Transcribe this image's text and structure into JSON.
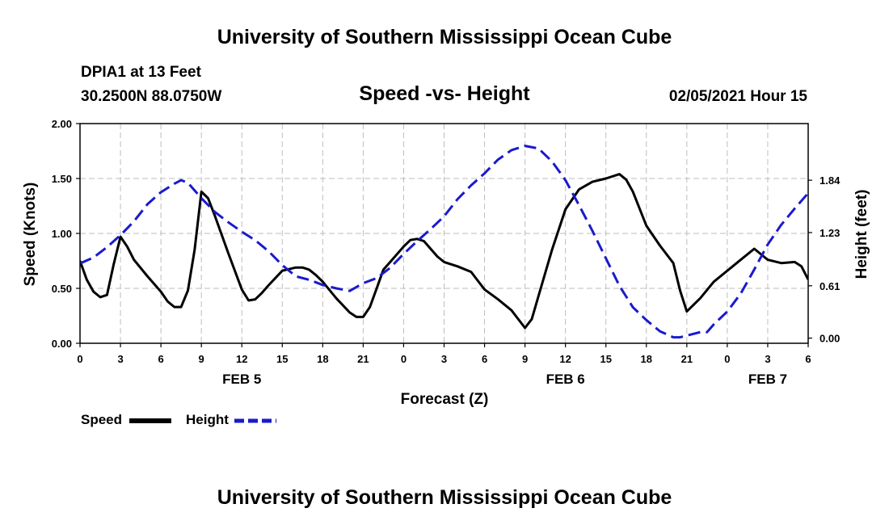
{
  "header": {
    "top_title": "University of Southern Mississippi Ocean Cube",
    "station_name": "DPIA1 at 13 Feet",
    "station_coords": "30.2500N 88.0750W",
    "chart_title": "Speed -vs- Height",
    "timestamp": "02/05/2021 Hour 15"
  },
  "footer": {
    "bottom_title": "University of Southern Mississippi Ocean Cube"
  },
  "colors": {
    "speed": "#000000",
    "height": "#1a1acd",
    "grid": "#bdbdbd"
  },
  "chart_data": {
    "type": "line",
    "title": "Speed -vs- Height",
    "xlabel": "Forecast (Z)",
    "ylabel": "Speed (Knots)",
    "y2label": "Height (feet)",
    "xlim": [
      0,
      54
    ],
    "ylim": [
      0,
      2.0
    ],
    "y2lim": [
      -0.06,
      2.5
    ],
    "grid": true,
    "legend_position": "bottom-left",
    "x_ticks": [
      {
        "x": 0,
        "label": "0"
      },
      {
        "x": 3,
        "label": "3"
      },
      {
        "x": 6,
        "label": "6"
      },
      {
        "x": 9,
        "label": "9"
      },
      {
        "x": 12,
        "label": "12"
      },
      {
        "x": 15,
        "label": "15"
      },
      {
        "x": 18,
        "label": "18"
      },
      {
        "x": 21,
        "label": "21"
      },
      {
        "x": 24,
        "label": "0"
      },
      {
        "x": 27,
        "label": "3"
      },
      {
        "x": 30,
        "label": "6"
      },
      {
        "x": 33,
        "label": "9"
      },
      {
        "x": 36,
        "label": "12"
      },
      {
        "x": 39,
        "label": "15"
      },
      {
        "x": 42,
        "label": "18"
      },
      {
        "x": 45,
        "label": "21"
      },
      {
        "x": 48,
        "label": "0"
      },
      {
        "x": 51,
        "label": "3"
      },
      {
        "x": 54,
        "label": "6"
      }
    ],
    "y_ticks": [
      "0.00",
      "0.50",
      "1.00",
      "1.50",
      "2.00"
    ],
    "y2_ticks": [
      {
        "value": 0.0,
        "label": "0.00"
      },
      {
        "value": 0.61,
        "label": "0.61"
      },
      {
        "value": 1.23,
        "label": "1.23"
      },
      {
        "value": 1.84,
        "label": "1.84"
      }
    ],
    "date_labels": [
      {
        "x": 12,
        "label": "FEB 5"
      },
      {
        "x": 36,
        "label": "FEB 6"
      },
      {
        "x": 51,
        "label": "FEB 7"
      }
    ],
    "series": [
      {
        "name": "Speed",
        "axis": "left",
        "style": "solid",
        "x": [
          0,
          0.5,
          1,
          1.5,
          2,
          2.5,
          3,
          3.5,
          4,
          5,
          6,
          6.5,
          7,
          7.5,
          8,
          8.5,
          9,
          9.5,
          10,
          11,
          12,
          12.5,
          13,
          13.5,
          14,
          15,
          16,
          16.5,
          17,
          17.5,
          18,
          19,
          20,
          20.5,
          21,
          21.5,
          22,
          22.5,
          23,
          24,
          24.5,
          25,
          25.5,
          26,
          26.5,
          27,
          28,
          29,
          29.5,
          30,
          31,
          32,
          33,
          33.5,
          34,
          35,
          36,
          37,
          38,
          39,
          40,
          40.5,
          41,
          42,
          43,
          44,
          44.5,
          45,
          46,
          47,
          48,
          49,
          50,
          51,
          52,
          53,
          53.5,
          54
        ],
        "y": [
          0.75,
          0.58,
          0.47,
          0.42,
          0.44,
          0.72,
          0.97,
          0.88,
          0.76,
          0.61,
          0.47,
          0.38,
          0.33,
          0.33,
          0.48,
          0.85,
          1.38,
          1.32,
          1.16,
          0.82,
          0.49,
          0.39,
          0.4,
          0.46,
          0.53,
          0.66,
          0.69,
          0.69,
          0.67,
          0.62,
          0.56,
          0.41,
          0.28,
          0.24,
          0.24,
          0.33,
          0.5,
          0.67,
          0.74,
          0.88,
          0.94,
          0.95,
          0.93,
          0.86,
          0.79,
          0.74,
          0.7,
          0.65,
          0.57,
          0.49,
          0.4,
          0.3,
          0.14,
          0.22,
          0.43,
          0.85,
          1.22,
          1.4,
          1.47,
          1.5,
          1.54,
          1.49,
          1.38,
          1.07,
          0.89,
          0.73,
          0.48,
          0.29,
          0.41,
          0.56,
          0.66,
          0.76,
          0.86,
          0.76,
          0.73,
          0.74,
          0.7,
          0.58
        ]
      },
      {
        "name": "Height",
        "axis": "right",
        "style": "dashed",
        "x": [
          0,
          1,
          2,
          3,
          4,
          5,
          6,
          7,
          7.5,
          8,
          9,
          10,
          11,
          12,
          13,
          14,
          15,
          16,
          17,
          18,
          19,
          20,
          21,
          22,
          23,
          24,
          25,
          26,
          27,
          28,
          29,
          30,
          31,
          32,
          33,
          34,
          35,
          36,
          37,
          38,
          39,
          40,
          41,
          42,
          43,
          44,
          44.5,
          45,
          46,
          46.5,
          47,
          48,
          49,
          50,
          51,
          52,
          53,
          54
        ],
        "y": [
          0.87,
          0.94,
          1.06,
          1.2,
          1.36,
          1.56,
          1.7,
          1.8,
          1.84,
          1.81,
          1.63,
          1.47,
          1.35,
          1.24,
          1.14,
          1.01,
          0.85,
          0.72,
          0.68,
          0.62,
          0.58,
          0.55,
          0.64,
          0.7,
          0.82,
          0.98,
          1.13,
          1.27,
          1.42,
          1.62,
          1.78,
          1.92,
          2.08,
          2.19,
          2.24,
          2.21,
          2.06,
          1.84,
          1.55,
          1.25,
          0.93,
          0.61,
          0.36,
          0.21,
          0.08,
          0.01,
          0.01,
          0.03,
          0.07,
          0.07,
          0.16,
          0.31,
          0.52,
          0.8,
          1.09,
          1.32,
          1.51,
          1.69
        ]
      }
    ]
  }
}
